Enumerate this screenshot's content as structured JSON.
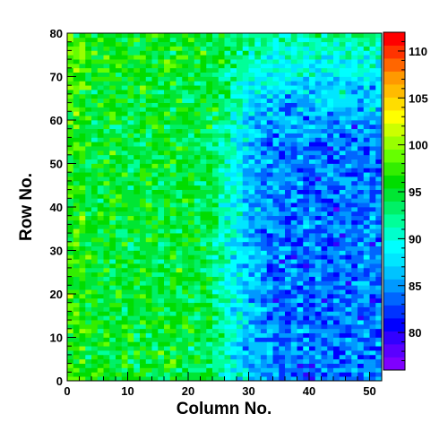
{
  "chart_data": {
    "type": "heatmap",
    "title": "",
    "xlabel": "Column No.",
    "ylabel": "Row No.",
    "xlim": [
      0,
      52
    ],
    "ylim": [
      0,
      80
    ],
    "x_ticks": [
      "0",
      "10",
      "20",
      "30",
      "40",
      "50"
    ],
    "y_ticks": [
      "0",
      "10",
      "20",
      "30",
      "40",
      "50",
      "60",
      "70",
      "80"
    ],
    "n_columns": 52,
    "n_rows": 80,
    "colorbar": {
      "min": 76,
      "max": 112,
      "tick_values": [
        80,
        85,
        90,
        95,
        100,
        105,
        110
      ],
      "tick_labels": [
        "80",
        "85",
        "90",
        "95",
        "100",
        "105",
        "110"
      ]
    },
    "value_pattern": {
      "description": "values near 95-97 in columns 0-25 (higher near left edge), decreasing to about 82-86 in columns 28-52 below row 60; noisy cell-to-cell variation",
      "left_region_mean": 95,
      "right_region_mean": 84,
      "noise_amplitude": 4
    },
    "palette": [
      "#7f00ff",
      "#5a00ff",
      "#3200ff",
      "#0000ff",
      "#0033ff",
      "#0066ff",
      "#0099ff",
      "#00c3ff",
      "#00e6ff",
      "#00ffff",
      "#00ffcc",
      "#00ff99",
      "#00f066",
      "#00e633",
      "#00dd00",
      "#33ee00",
      "#66ff00",
      "#99ff00",
      "#ccff00",
      "#ffff00",
      "#ffdd00",
      "#ffbb00",
      "#ff9900",
      "#ff6600",
      "#ff3300",
      "#ff0000"
    ]
  }
}
